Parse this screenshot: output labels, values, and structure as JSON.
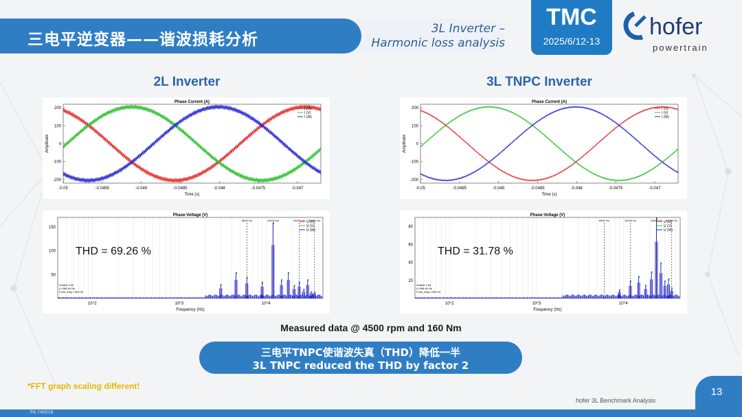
{
  "header": {
    "title": "三电平逆变器——谐波损耗分析",
    "subtitle_line1": "3L Inverter –",
    "subtitle_line2": "Harmonic loss analysis"
  },
  "logos": {
    "tmc": "TMC",
    "tmc_date": "2025/6/12-13",
    "hofer": "hofer",
    "hofer_sub": "powertrain"
  },
  "columns": {
    "left_title": "2L Inverter",
    "right_title": "3L TNPC Inverter"
  },
  "thd": {
    "left": "THD = 69.26 %",
    "right": "THD = 31.78 %"
  },
  "measured": "Measured data @ 4500 rpm and 160 Nm",
  "callout": {
    "line1": "三电平TNPC使谐波失真（THD）降低一半",
    "line2": "3L TNPC reduced the THD by factor 2"
  },
  "footnote": "*FFT graph scaling different!",
  "footer": {
    "text": "hofer 3L Benchmark Analysis",
    "page": "13",
    "doc_id": "FA 740018"
  },
  "colors": {
    "accent": "#2f7ec4",
    "phase_u": "#e03030",
    "phase_v": "#30c030",
    "phase_w": "#2828d0"
  },
  "chart_data": [
    {
      "type": "line",
      "title": "Phase Current (A)",
      "xlabel": "Time (s)",
      "ylabel": "Amplitude",
      "x_ticks": [
        "-0.05",
        "-0.0495",
        "-0.049",
        "-0.0485",
        "-0.048",
        "-0.0475",
        "-0.047"
      ],
      "y_ticks": [
        "200",
        "100",
        "0",
        "-100",
        "-200"
      ],
      "xlim": [
        -0.05,
        -0.0467
      ],
      "ylim": [
        -220,
        220
      ],
      "legend": [
        "I (U)",
        "I (V)",
        "I (W)"
      ],
      "legend_position": "top-right",
      "series": [
        {
          "name": "I (U)",
          "amplitude": 205,
          "period_s": 0.00333,
          "phase_deg": 115,
          "ripple": "high"
        },
        {
          "name": "I (V)",
          "amplitude": 205,
          "period_s": 0.00333,
          "phase_deg": -5,
          "ripple": "high"
        },
        {
          "name": "I (W)",
          "amplitude": 205,
          "period_s": 0.00333,
          "phase_deg": 235,
          "ripple": "high"
        }
      ]
    },
    {
      "type": "line",
      "title": "Phase Current (A)",
      "xlabel": "Time (s)",
      "ylabel": "Amplitude",
      "x_ticks": [
        "-0.05",
        "-0.0495",
        "-0.049",
        "-0.0485",
        "-0.048",
        "-0.0475",
        "-0.047"
      ],
      "y_ticks": [
        "200",
        "100",
        "0",
        "-100",
        "-200"
      ],
      "xlim": [
        -0.05,
        -0.0467
      ],
      "ylim": [
        -220,
        220
      ],
      "legend": [
        "I (U)",
        "I (V)",
        "I (W)"
      ],
      "legend_position": "top-right",
      "series": [
        {
          "name": "I (U)",
          "amplitude": 205,
          "period_s": 0.00333,
          "phase_deg": 115,
          "ripple": "low"
        },
        {
          "name": "I (V)",
          "amplitude": 205,
          "period_s": 0.00333,
          "phase_deg": -5,
          "ripple": "low"
        },
        {
          "name": "I (W)",
          "amplitude": 205,
          "period_s": 0.00333,
          "phase_deg": 235,
          "ripple": "low"
        }
      ]
    },
    {
      "type": "bar",
      "title": "Phase-Voltage (V)",
      "xlabel": "Frequency (Hz)",
      "x_scale": "log",
      "x_ticks": [
        "10^2",
        "10^3",
        "10^4"
      ],
      "y_ticks": [
        "150",
        "100",
        "50"
      ],
      "ylim": [
        0,
        170
      ],
      "legend": [
        "U (U)",
        "U (V)",
        "U (W)"
      ],
      "legend_position": "top-right",
      "markers": [
        "6000 Hz",
        "12000 Hz",
        "24000 Hz",
        "36000 Hz"
      ],
      "peaks_hz": [
        3000,
        4500,
        6000,
        9000,
        12000,
        15000,
        18000,
        21000,
        24000,
        27000,
        30000,
        33000,
        36000
      ],
      "peaks_v": [
        30,
        55,
        45,
        35,
        160,
        40,
        55,
        28,
        35,
        20,
        40,
        15,
        15
      ],
      "info": [
        "Scaled 1:50",
        "f₁=288.94 Hz",
        "Fund. Amp.=303.34"
      ]
    },
    {
      "type": "bar",
      "title": "Phase-Voltage (V)",
      "xlabel": "Frequency (Hz)",
      "x_scale": "log",
      "x_ticks": [
        "10^2",
        "10^3",
        "10^4"
      ],
      "y_ticks": [
        "80",
        "60",
        "40",
        "20"
      ],
      "ylim": [
        0,
        90
      ],
      "legend": [
        "U (U)",
        "U (V)",
        "U (W)"
      ],
      "legend_position": "top-right",
      "markers": [
        "6000 Hz",
        "12000 Hz",
        "24000 Hz",
        "36000 Hz"
      ],
      "peaks_hz": [
        9000,
        12000,
        15000,
        18000,
        21000,
        24000,
        27000,
        30000,
        33000,
        36000
      ],
      "peaks_v": [
        10,
        20,
        25,
        15,
        30,
        90,
        40,
        20,
        22,
        12
      ],
      "info": [
        "Scaled 1:50",
        "f₁=288.94 Hz",
        "Fund. Amp.=499.44"
      ]
    }
  ]
}
